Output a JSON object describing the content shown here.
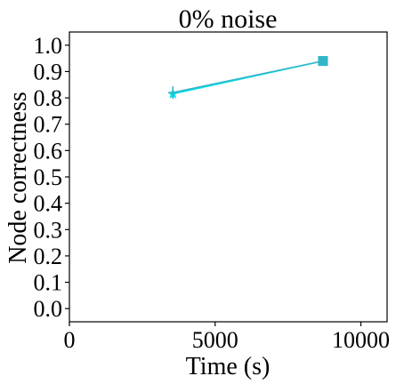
{
  "chart_data": {
    "type": "line",
    "title": "0% noise",
    "xlabel": "Time (s)",
    "ylabel": "Node correctness",
    "xlim": [
      0,
      10900
    ],
    "ylim": [
      -0.05,
      1.05
    ],
    "x_ticks": [
      0,
      5000,
      10000
    ],
    "x_tick_labels": [
      "0",
      "5000",
      "10000"
    ],
    "y_ticks": [
      0.0,
      0.1,
      0.2,
      0.3,
      0.4,
      0.5,
      0.6,
      0.7,
      0.8,
      0.9,
      1.0
    ],
    "y_tick_labels": [
      "0.0",
      "0.1",
      "0.2",
      "0.3",
      "0.4",
      "0.5",
      "0.6",
      "0.7",
      "0.8",
      "0.9",
      "1.0"
    ],
    "grid": false,
    "legend": "none",
    "series": [
      {
        "color": "#00e5ee",
        "points": [
          {
            "x": 3550,
            "y": 0.815,
            "marker": "star"
          },
          {
            "x": 8700,
            "y": 0.94,
            "marker": "square"
          }
        ]
      },
      {
        "color": "#33b5c8",
        "points": [
          {
            "x": 3550,
            "y": 0.82,
            "marker": "plus"
          },
          {
            "x": 8700,
            "y": 0.94,
            "marker": "square"
          }
        ]
      }
    ]
  }
}
